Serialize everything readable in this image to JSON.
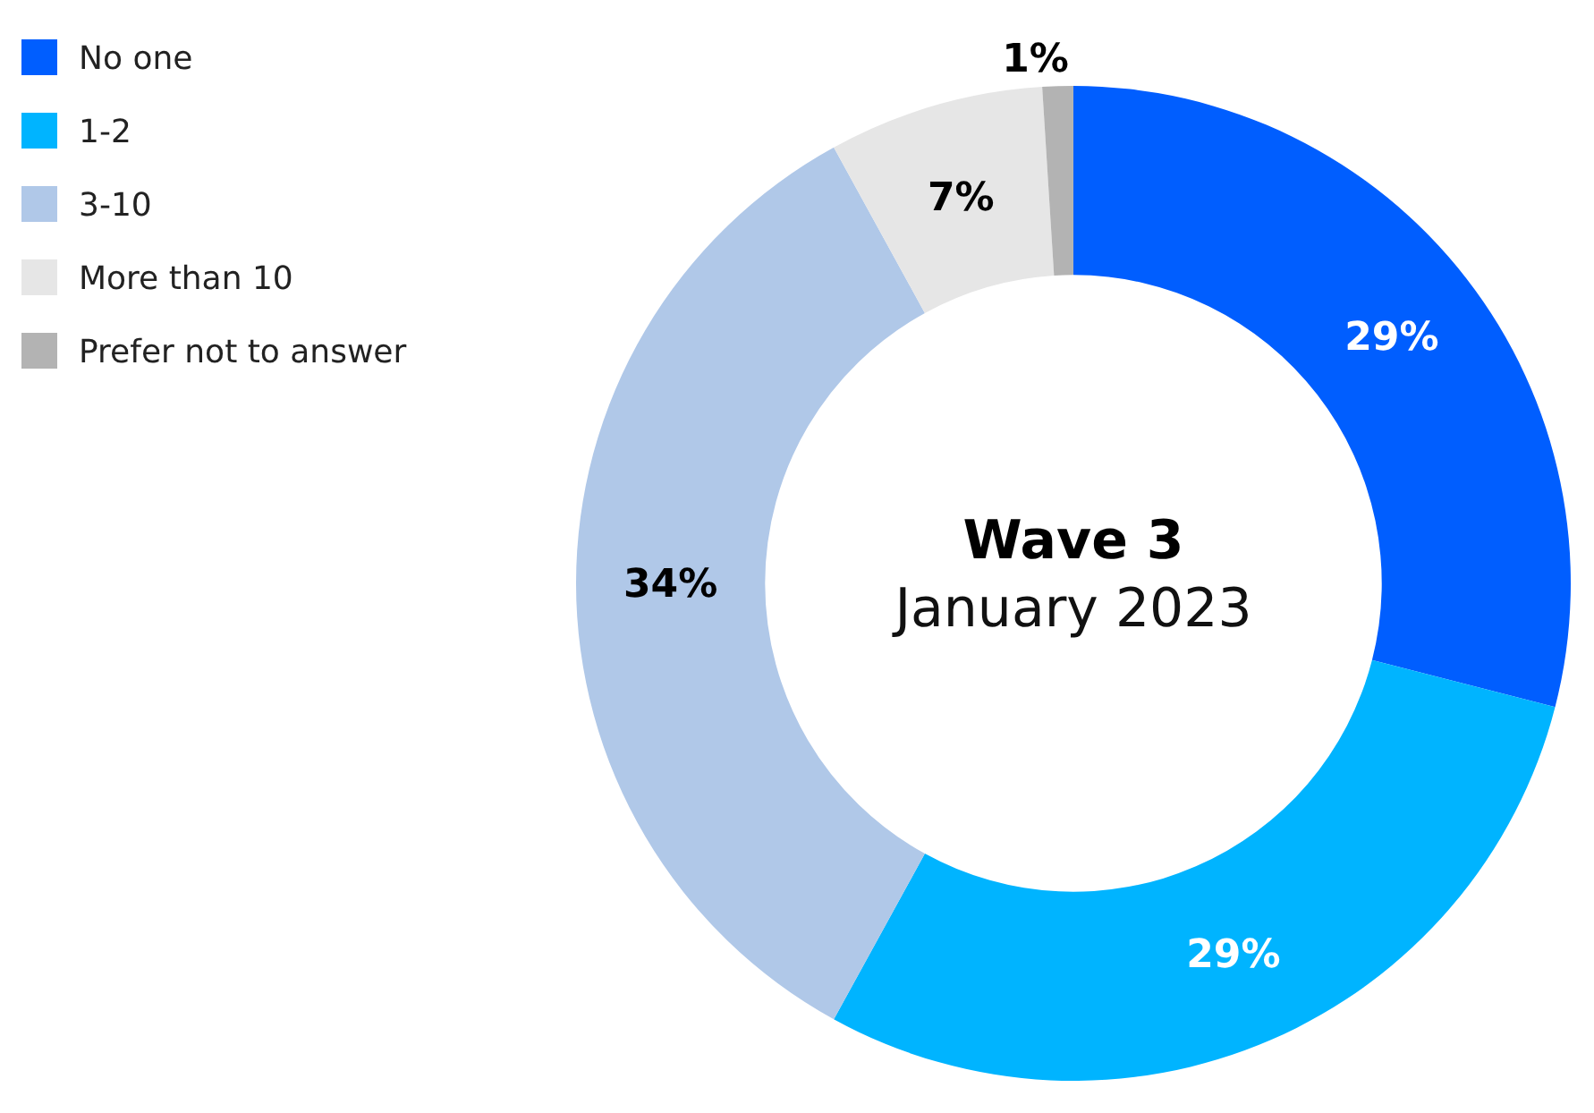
{
  "chart_data": {
    "type": "donut",
    "title": "Wave 3",
    "subtitle": "January 2023",
    "categories": [
      "No one",
      "1-2",
      "3-10",
      "More than 10",
      "Prefer not to answer"
    ],
    "values": [
      29,
      29,
      34,
      7,
      1
    ],
    "colors": [
      "#005eff",
      "#00b4ff",
      "#b0c8e8",
      "#e6e6e6",
      "#b3b3b3"
    ],
    "value_labels": [
      "29%",
      "29%",
      "34%",
      "7%",
      "1%"
    ],
    "legend": "top left"
  }
}
